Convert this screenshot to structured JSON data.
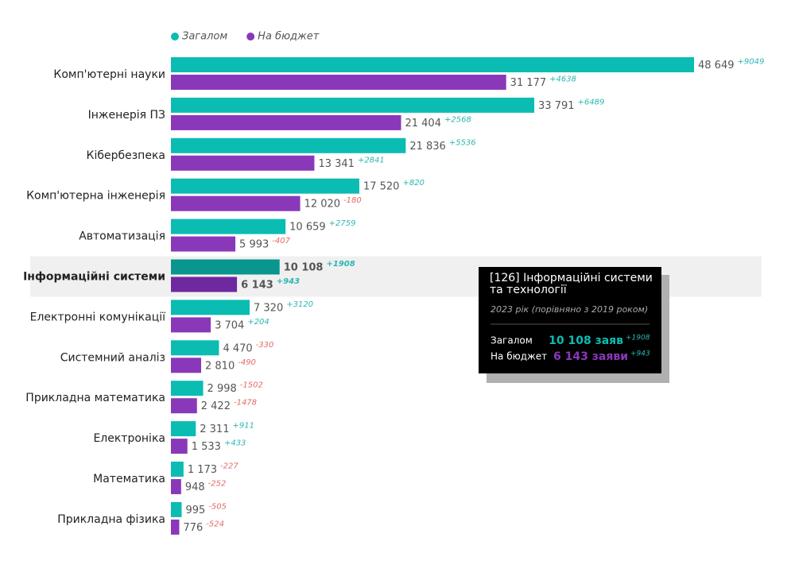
{
  "chart_data": {
    "type": "bar",
    "orientation": "horizontal",
    "categories": [
      "Комп'ютерні науки",
      "Інженерія ПЗ",
      "Кібербезпека",
      "Комп'ютерна інженерія",
      "Автоматизація",
      "Інформаційні системи",
      "Електронні комунікації",
      "Системний аналіз",
      "Прикладна математика",
      "Електроніка",
      "Математика",
      "Прикладна фізика"
    ],
    "highlighted_category": "Інформаційні системи",
    "series": [
      {
        "name": "Загалом",
        "color": "#0bbcb2",
        "highlight_color": "#09968e",
        "values": [
          48649,
          33791,
          21836,
          17520,
          10659,
          10108,
          7320,
          4470,
          2998,
          2311,
          1173,
          995
        ],
        "value_labels": [
          "48 649",
          "33 791",
          "21 836",
          "17 520",
          "10 659",
          "10 108",
          "7 320",
          "4 470",
          "2 998",
          "2 311",
          "1 173",
          "995"
        ],
        "changes": [
          9049,
          6489,
          5536,
          820,
          2759,
          1908,
          3120,
          -330,
          -1502,
          911,
          -227,
          -505
        ],
        "change_labels": [
          "+9049",
          "+6489",
          "+5536",
          "+820",
          "+2759",
          "+1908",
          "+3120",
          "-330",
          "-1502",
          "+911",
          "-227",
          "-505"
        ]
      },
      {
        "name": "На бюджет",
        "color": "#8a38ba",
        "highlight_color": "#6e28a0",
        "values": [
          31177,
          21404,
          13341,
          12020,
          5993,
          6143,
          3704,
          2810,
          2422,
          1533,
          948,
          776
        ],
        "value_labels": [
          "31 177",
          "21 404",
          "13 341",
          "12 020",
          "5 993",
          "6 143",
          "3 704",
          "2 810",
          "2 422",
          "1 533",
          "948",
          "776"
        ],
        "changes": [
          4638,
          2568,
          2841,
          -180,
          -407,
          943,
          204,
          -490,
          -1478,
          433,
          -252,
          -524
        ],
        "change_labels": [
          "+4638",
          "+2568",
          "+2841",
          "-180",
          "-407",
          "+943",
          "+204",
          "-490",
          "-1478",
          "+433",
          "-252",
          "-524"
        ]
      }
    ],
    "positive_color": "#2bb7b0",
    "negative_color": "#e36a63",
    "tooltip": {
      "title": "[126] Інформаційні системи та технології",
      "subtitle": "2023 рік (порівняно з 2019 роком)",
      "rows": [
        {
          "label": "Загалом",
          "value": "10 108 заяв",
          "change": "+1908"
        },
        {
          "label": "На бюджет",
          "value": "6 143 заяви",
          "change": "+943"
        }
      ]
    }
  }
}
